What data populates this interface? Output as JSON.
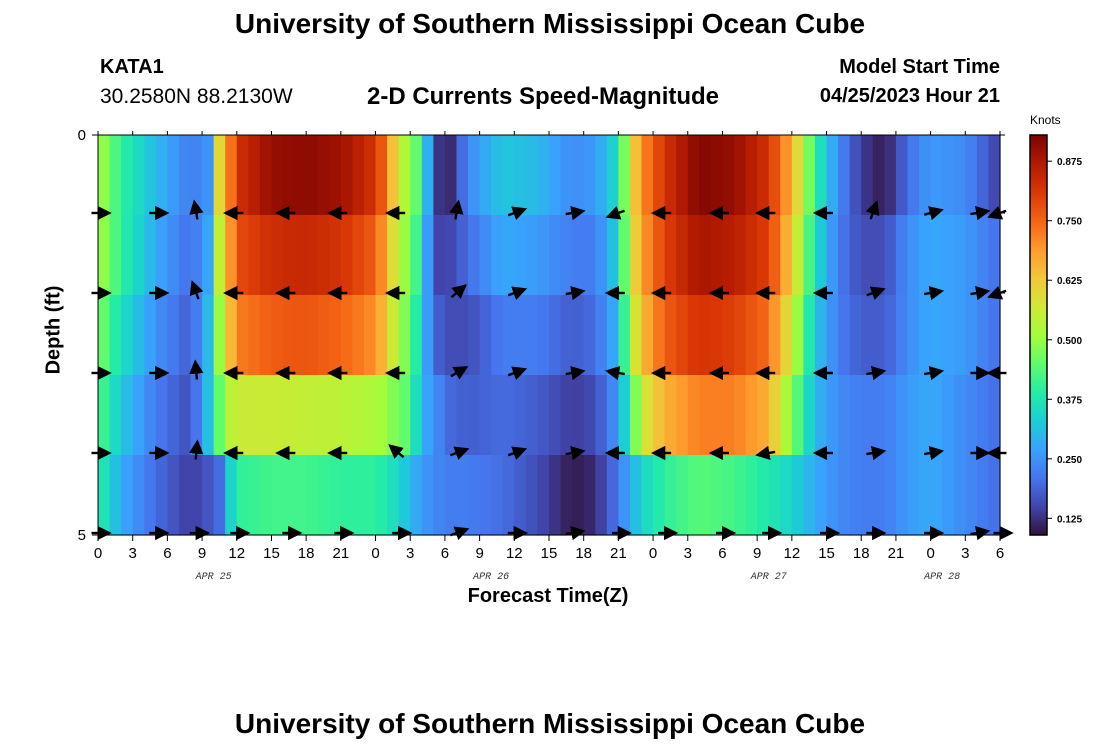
{
  "header": {
    "title": "University of Southern Mississippi Ocean Cube",
    "station": "KATA1",
    "coordinates": "30.2580N  88.2130W",
    "subtitle": "2-D Currents Speed-Magnitude",
    "model_start_label": "Model Start Time",
    "model_start_value": "04/25/2023 Hour 21",
    "footer_title": "University of Southern Mississippi Ocean Cube"
  },
  "colorbar": {
    "label": "Knots",
    "ticks": [
      "0.125",
      "0.250",
      "0.375",
      "0.500",
      "0.625",
      "0.750",
      "0.875"
    ],
    "tick_values": [
      0.125,
      0.25,
      0.375,
      0.5,
      0.625,
      0.75,
      0.875
    ],
    "range": [
      0.09,
      0.93
    ],
    "colors": [
      "#30123b",
      "#4145ab",
      "#4675ed",
      "#39a2fc",
      "#1bcfd4",
      "#24eca6",
      "#61fc6c",
      "#a4fc3b",
      "#d1e834",
      "#f3c63a",
      "#fe9b2d",
      "#f36315",
      "#d93806",
      "#b11901",
      "#7a0403"
    ]
  },
  "chart_data": {
    "type": "heatmap",
    "title": "2-D Currents Speed-Magnitude",
    "xlabel": "Forecast Time(Z)",
    "ylabel": "Depth (ft)",
    "x_tick_labels": [
      "0",
      "3",
      "6",
      "9",
      "12",
      "15",
      "18",
      "21",
      "0",
      "3",
      "6",
      "9",
      "12",
      "15",
      "18",
      "21",
      "0",
      "3",
      "6",
      "9",
      "12",
      "15",
      "18",
      "21",
      "0",
      "3",
      "6"
    ],
    "date_labels": [
      {
        "text": "APR 25",
        "hour": 10
      },
      {
        "text": "APR 26",
        "hour": 34
      },
      {
        "text": "APR 27",
        "hour": 58
      },
      {
        "text": "APR 28",
        "hour": 73
      }
    ],
    "y_tick_labels": [
      "0",
      "5"
    ],
    "xlim": [
      0,
      78
    ],
    "ylim": [
      0,
      5
    ],
    "depth_levels": 5,
    "units": "knots",
    "speed_anchors": [
      {
        "hour": 0,
        "speeds": [
          0.52,
          0.52,
          0.48,
          0.44,
          0.4
        ]
      },
      {
        "hour": 2,
        "speeds": [
          0.4,
          0.4,
          0.36,
          0.32,
          0.28
        ]
      },
      {
        "hour": 5,
        "speeds": [
          0.3,
          0.28,
          0.25,
          0.22,
          0.2
        ]
      },
      {
        "hour": 8,
        "speeds": [
          0.22,
          0.2,
          0.18,
          0.16,
          0.14
        ]
      },
      {
        "hour": 10,
        "speeds": [
          0.26,
          0.3,
          0.34,
          0.36,
          0.18
        ]
      },
      {
        "hour": 10.5,
        "speeds": [
          0.6,
          0.55,
          0.5,
          0.45,
          0.2
        ]
      },
      {
        "hour": 11,
        "speeds": [
          0.65,
          0.62,
          0.58,
          0.52,
          0.28
        ]
      },
      {
        "hour": 12,
        "speeds": [
          0.82,
          0.78,
          0.72,
          0.56,
          0.4
        ]
      },
      {
        "hour": 15,
        "speeds": [
          0.9,
          0.83,
          0.76,
          0.56,
          0.42
        ]
      },
      {
        "hour": 18,
        "speeds": [
          0.91,
          0.84,
          0.77,
          0.55,
          0.42
        ]
      },
      {
        "hour": 21,
        "speeds": [
          0.89,
          0.82,
          0.75,
          0.54,
          0.4
        ]
      },
      {
        "hour": 24,
        "speeds": [
          0.82,
          0.76,
          0.7,
          0.52,
          0.4
        ]
      },
      {
        "hour": 25,
        "speeds": [
          0.72,
          0.66,
          0.62,
          0.5,
          0.38
        ]
      },
      {
        "hour": 26,
        "speeds": [
          0.55,
          0.52,
          0.5,
          0.46,
          0.34
        ]
      },
      {
        "hour": 27,
        "speeds": [
          0.5,
          0.48,
          0.46,
          0.44,
          0.3
        ]
      },
      {
        "hour": 28,
        "speeds": [
          0.4,
          0.36,
          0.32,
          0.28,
          0.26
        ]
      },
      {
        "hour": 29,
        "speeds": [
          0.18,
          0.16,
          0.2,
          0.26,
          0.24
        ]
      },
      {
        "hour": 30,
        "speeds": [
          0.08,
          0.14,
          0.16,
          0.2,
          0.22
        ]
      },
      {
        "hour": 32,
        "speeds": [
          0.24,
          0.2,
          0.16,
          0.18,
          0.22
        ]
      },
      {
        "hour": 35,
        "speeds": [
          0.32,
          0.28,
          0.22,
          0.2,
          0.2
        ]
      },
      {
        "hour": 38,
        "speeds": [
          0.3,
          0.26,
          0.22,
          0.18,
          0.16
        ]
      },
      {
        "hour": 41,
        "speeds": [
          0.24,
          0.22,
          0.18,
          0.14,
          0.1
        ]
      },
      {
        "hour": 43,
        "speeds": [
          0.26,
          0.22,
          0.2,
          0.16,
          0.12
        ]
      },
      {
        "hour": 45,
        "speeds": [
          0.36,
          0.34,
          0.3,
          0.26,
          0.22
        ]
      },
      {
        "hour": 46,
        "speeds": [
          0.58,
          0.56,
          0.52,
          0.4,
          0.28
        ]
      },
      {
        "hour": 47,
        "speeds": [
          0.7,
          0.68,
          0.64,
          0.56,
          0.34
        ]
      },
      {
        "hour": 49,
        "speeds": [
          0.82,
          0.8,
          0.76,
          0.66,
          0.4
        ]
      },
      {
        "hour": 52,
        "speeds": [
          0.92,
          0.88,
          0.82,
          0.72,
          0.44
        ]
      },
      {
        "hour": 55,
        "speeds": [
          0.9,
          0.86,
          0.8,
          0.72,
          0.42
        ]
      },
      {
        "hour": 58,
        "speeds": [
          0.82,
          0.8,
          0.74,
          0.66,
          0.38
        ]
      },
      {
        "hour": 60,
        "speeds": [
          0.66,
          0.62,
          0.56,
          0.48,
          0.34
        ]
      },
      {
        "hour": 62,
        "speeds": [
          0.4,
          0.36,
          0.32,
          0.3,
          0.28
        ]
      },
      {
        "hour": 64,
        "speeds": [
          0.24,
          0.22,
          0.22,
          0.24,
          0.24
        ]
      },
      {
        "hour": 66,
        "speeds": [
          0.14,
          0.16,
          0.18,
          0.22,
          0.22
        ]
      },
      {
        "hour": 68,
        "speeds": [
          0.1,
          0.16,
          0.18,
          0.22,
          0.22
        ]
      },
      {
        "hour": 70,
        "speeds": [
          0.2,
          0.24,
          0.24,
          0.26,
          0.26
        ]
      },
      {
        "hour": 72,
        "speeds": [
          0.26,
          0.28,
          0.28,
          0.28,
          0.28
        ]
      },
      {
        "hour": 75,
        "speeds": [
          0.24,
          0.26,
          0.26,
          0.24,
          0.24
        ]
      },
      {
        "hour": 78,
        "speeds": [
          0.14,
          0.2,
          0.2,
          0.2,
          0.2
        ]
      }
    ],
    "vector_hours": [
      0,
      5,
      8.5,
      12,
      16.5,
      21,
      26,
      31,
      36,
      41,
      45,
      49,
      54,
      58,
      63,
      67,
      72,
      76,
      78
    ],
    "vector_depths": [
      1,
      2,
      3,
      4,
      5
    ],
    "vector_directions_deg": [
      [
        0,
        0,
        0,
        0,
        0
      ],
      [
        0,
        0,
        0,
        0,
        0
      ],
      [
        100,
        110,
        95,
        85,
        0
      ],
      [
        180,
        180,
        180,
        180,
        0
      ],
      [
        180,
        180,
        180,
        180,
        0
      ],
      [
        180,
        180,
        180,
        180,
        0
      ],
      [
        180,
        180,
        180,
        140,
        0
      ],
      [
        80,
        40,
        30,
        20,
        20
      ],
      [
        20,
        20,
        20,
        20,
        0
      ],
      [
        10,
        10,
        10,
        10,
        10
      ],
      [
        200,
        180,
        170,
        180,
        0
      ],
      [
        180,
        180,
        180,
        180,
        0
      ],
      [
        180,
        180,
        180,
        180,
        0
      ],
      [
        180,
        180,
        180,
        190,
        0
      ],
      [
        180,
        180,
        180,
        180,
        0
      ],
      [
        70,
        20,
        10,
        10,
        0
      ],
      [
        15,
        10,
        10,
        10,
        0
      ],
      [
        10,
        10,
        0,
        0,
        10
      ],
      [
        200,
        200,
        180,
        180,
        0
      ]
    ]
  }
}
